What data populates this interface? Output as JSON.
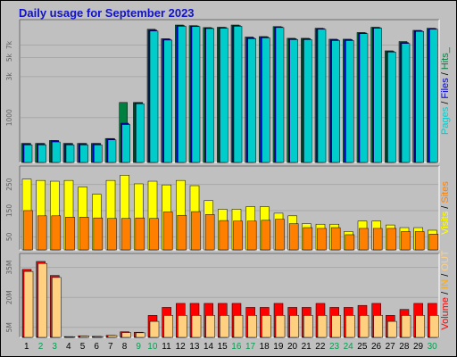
{
  "title": "Daily usage for September 2023",
  "side_labels": {
    "top": [
      {
        "text": "Pages",
        "color": "#00cccc"
      },
      {
        "text": " / ",
        "color": "#000000"
      },
      {
        "text": "Files",
        "color": "#0000cc"
      },
      {
        "text": " / ",
        "color": "#000000"
      },
      {
        "text": "Hits",
        "color": "#008040"
      },
      {
        "text": "_",
        "color": "#008040"
      }
    ],
    "middle": [
      {
        "text": "Visits",
        "color": "#ffff00"
      },
      {
        "text": " / ",
        "color": "#000000"
      },
      {
        "text": "Sites",
        "color": "#ff8000"
      }
    ],
    "bottom": [
      {
        "text": "Volume",
        "color": "#ff0000"
      },
      {
        "text": "  /  ",
        "color": "#000000"
      },
      {
        "text": "IN",
        "color": "#ffaa00"
      },
      {
        "text": " / ",
        "color": "#000000"
      },
      {
        "text": "OUT",
        "color": "#ffd080"
      }
    ]
  },
  "chart_data": [
    {
      "type": "bar",
      "name": "hits-files-pages",
      "scale": "log",
      "categories": [
        "1",
        "2",
        "3",
        "4",
        "5",
        "6",
        "7",
        "8",
        "9",
        "10",
        "11",
        "12",
        "13",
        "14",
        "15",
        "16",
        "17",
        "18",
        "19",
        "20",
        "21",
        "22",
        "23",
        "24",
        "25",
        "26",
        "27",
        "28",
        "29",
        "30"
      ],
      "weekend_days": [
        "2",
        "3",
        "9",
        "10",
        "16",
        "17",
        "23",
        "24",
        "30"
      ],
      "yticks": [
        "1000",
        "3k",
        "5k",
        "7k"
      ],
      "ylim": [
        0,
        12000
      ],
      "series": [
        {
          "name": "Hits",
          "color": "#008040",
          "values": [
            500,
            500,
            540,
            500,
            500,
            500,
            570,
            1500,
            1500,
            10700,
            8300,
            12000,
            11800,
            11200,
            11300,
            12000,
            8700,
            8800,
            11500,
            8400,
            8400,
            11000,
            8200,
            8200,
            9800,
            11300,
            6000,
            7700,
            10400,
            11000
          ]
        },
        {
          "name": "Files",
          "color": "#0000cc",
          "values": [
            500,
            500,
            540,
            500,
            500,
            500,
            570,
            860,
            1500,
            10500,
            8200,
            11800,
            11700,
            11100,
            11200,
            11800,
            8500,
            8700,
            11400,
            8300,
            8300,
            10900,
            8100,
            8100,
            9700,
            11200,
            5900,
            7500,
            10300,
            10900
          ]
        },
        {
          "name": "Pages",
          "color": "#00cccc",
          "values": [
            480,
            480,
            520,
            480,
            480,
            480,
            550,
            830,
            1450,
            10200,
            8000,
            11600,
            11500,
            10900,
            11000,
            11600,
            8300,
            8500,
            11200,
            8100,
            8100,
            10700,
            7900,
            7900,
            9500,
            11000,
            5800,
            7300,
            10100,
            10700
          ]
        }
      ]
    },
    {
      "type": "bar",
      "name": "visits-sites",
      "yticks": [
        "50",
        "150",
        "250"
      ],
      "ylim": [
        0,
        320
      ],
      "series": [
        {
          "name": "Visits",
          "color": "#ffff00",
          "values": [
            270,
            265,
            262,
            265,
            240,
            212,
            265,
            285,
            252,
            262,
            248,
            265,
            245,
            188,
            155,
            155,
            165,
            165,
            140,
            130,
            100,
            98,
            98,
            70,
            110,
            110,
            95,
            85,
            85,
            75
          ]
        },
        {
          "name": "Sites",
          "color": "#ff8000",
          "values": [
            150,
            130,
            130,
            125,
            125,
            122,
            120,
            120,
            122,
            120,
            145,
            132,
            146,
            135,
            112,
            110,
            110,
            113,
            117,
            100,
            85,
            82,
            85,
            58,
            82,
            82,
            82,
            70,
            70,
            60
          ]
        }
      ]
    },
    {
      "type": "bar",
      "name": "volume",
      "unit": "MB",
      "yticks": [
        "5M",
        "20M",
        "35M"
      ],
      "ylim": [
        0,
        42
      ],
      "series": [
        {
          "name": "Volume",
          "color": "#ff0000",
          "values": [
            34,
            38,
            31,
            0.4,
            0.8,
            0.5,
            1,
            2.8,
            2.6,
            11,
            15,
            17,
            17,
            17,
            17,
            17,
            15,
            15,
            17,
            15,
            15,
            17,
            15,
            15,
            16,
            17,
            11,
            14,
            17,
            17
          ]
        },
        {
          "name": "IN",
          "color": "#ffaa00",
          "values": [
            0.3,
            0.3,
            0.3,
            0.1,
            0.1,
            0.1,
            0.1,
            0.1,
            0.1,
            0.2,
            0.2,
            0.3,
            0.3,
            0.3,
            0.3,
            0.3,
            0.2,
            0.2,
            0.3,
            0.2,
            0.2,
            0.3,
            0.2,
            0.2,
            0.3,
            0.3,
            0.2,
            0.2,
            0.3,
            0.3
          ]
        },
        {
          "name": "OUT",
          "color": "#ffd080",
          "values": [
            33,
            37,
            30,
            0.3,
            0.7,
            0.4,
            0.9,
            2.4,
            2.3,
            8,
            11,
            11,
            11,
            11,
            11,
            11,
            11,
            11,
            11,
            11,
            11,
            11,
            11,
            11,
            11,
            11,
            8,
            11,
            11,
            11
          ]
        }
      ]
    }
  ]
}
